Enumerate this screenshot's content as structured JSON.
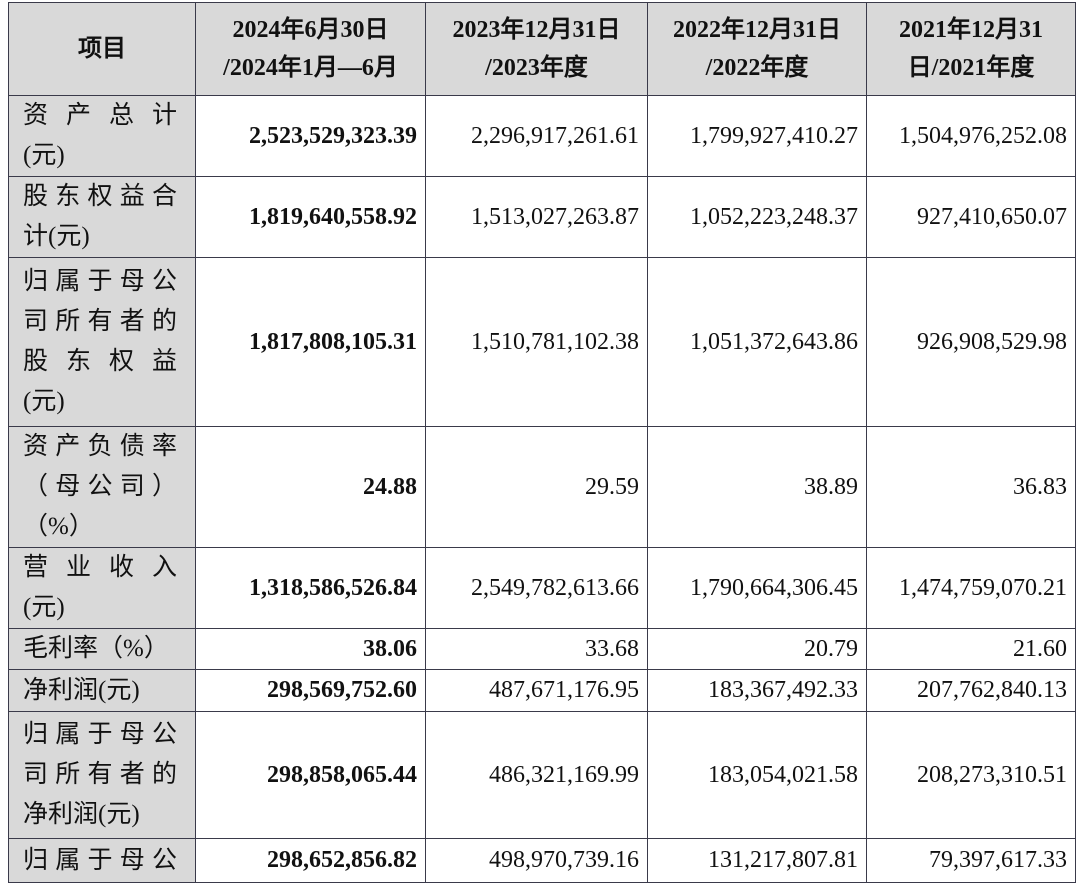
{
  "table": {
    "header": [
      [
        "项目"
      ],
      [
        "2024年6月30日",
        "/2024年1月—6月"
      ],
      [
        "2023年12月31日",
        "/2023年度"
      ],
      [
        "2022年12月31日",
        "/2022年度"
      ],
      [
        "2021年12月31",
        "日/2021年度"
      ]
    ],
    "rows": [
      {
        "label": [
          "资产总计",
          "(元)"
        ],
        "values": [
          "2,523,529,323.39",
          "2,296,917,261.61",
          "1,799,927,410.27",
          "1,504,976,252.08"
        ]
      },
      {
        "label": [
          "股东权益合",
          "计(元)"
        ],
        "values": [
          "1,819,640,558.92",
          "1,513,027,263.87",
          "1,052,223,248.37",
          "927,410,650.07"
        ]
      },
      {
        "label": [
          "归属于母公",
          "司所有者的",
          "股东权益",
          "(元)"
        ],
        "values": [
          "1,817,808,105.31",
          "1,510,781,102.38",
          "1,051,372,643.86",
          "926,908,529.98"
        ]
      },
      {
        "label": [
          "资产负债率",
          "（母公司）",
          "（%）"
        ],
        "values": [
          "24.88",
          "29.59",
          "38.89",
          "36.83"
        ]
      },
      {
        "label": [
          "营业收入",
          "(元)"
        ],
        "values": [
          "1,318,586,526.84",
          "2,549,782,613.66",
          "1,790,664,306.45",
          "1,474,759,070.21"
        ]
      },
      {
        "label": [
          "毛利率（%）"
        ],
        "values": [
          "38.06",
          "33.68",
          "20.79",
          "21.60"
        ]
      },
      {
        "label": [
          "净利润(元)"
        ],
        "values": [
          "298,569,752.60",
          "487,671,176.95",
          "183,367,492.33",
          "207,762,840.13"
        ]
      },
      {
        "label": [
          "归属于母公",
          "司所有者的",
          "净利润(元)"
        ],
        "values": [
          "298,858,065.44",
          "486,321,169.99",
          "183,054,021.58",
          "208,273,310.51"
        ]
      },
      {
        "label": [
          "归属于母公"
        ],
        "values": [
          "298,652,856.82",
          "498,970,739.16",
          "131,217,807.81",
          "79,397,617.33"
        ]
      }
    ]
  }
}
